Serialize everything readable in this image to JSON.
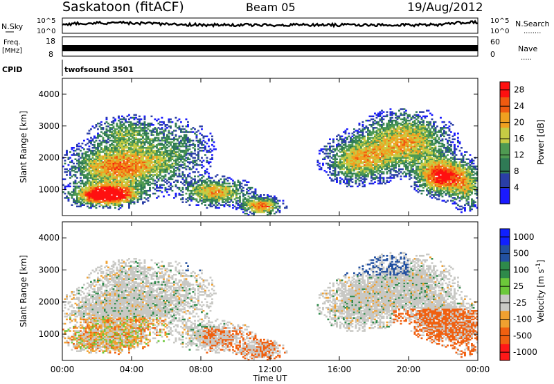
{
  "header": {
    "station": "Saskatoon (fitACF)",
    "beam": "Beam 05",
    "date": "19/Aug/2012"
  },
  "left_labels": {
    "nsky": "N.Sky",
    "freq_line1": "Freq.",
    "freq_line2": "[MHz]",
    "cpid": "CPID"
  },
  "right_labels": {
    "nsearch": "N.Search",
    "nsearch_dots": "........",
    "nave": "Nave",
    "nave_dots": "....."
  },
  "noise_panel": {
    "left_ticks": [
      "10^5",
      "10^0"
    ],
    "right_ticks": [
      "10^5",
      "10^0"
    ]
  },
  "freq_panel": {
    "left_ticks": [
      "18",
      "8"
    ],
    "right_ticks": [
      "60",
      "0"
    ]
  },
  "cpid_text": "twofsound 3501",
  "colors": {
    "power_scale": [
      "#1a1aff",
      "#2a3ea6",
      "#2f7a55",
      "#4f9a52",
      "#c6cc44",
      "#f0a020",
      "#f05a10",
      "#ff1010"
    ],
    "velocity_scale": [
      "#1020ff",
      "#2250a0",
      "#2e8a4a",
      "#6cc83a",
      "#c8c8c4",
      "#f0a030",
      "#f06010",
      "#ff1818"
    ]
  },
  "chart_data": [
    {
      "type": "heatmap",
      "ylabel": "Slant Range [km]",
      "xlabel": "",
      "yticks": [
        "1000",
        "2000",
        "3000",
        "4000"
      ],
      "ylim": [
        180,
        4500
      ],
      "xlim": [
        0,
        24
      ],
      "colorbar_label": "Power [dB]",
      "colorbar_ticks": [
        "4",
        "8",
        "12",
        "16",
        "20",
        "24",
        "28"
      ],
      "colorbar_range": [
        0,
        30
      ]
    },
    {
      "type": "heatmap",
      "ylabel": "Slant Range [km]",
      "xlabel": "Time UT",
      "yticks": [
        "1000",
        "2000",
        "3000",
        "4000"
      ],
      "xticks": [
        "00:00",
        "04:00",
        "08:00",
        "12:00",
        "16:00",
        "20:00",
        "00:00"
      ],
      "ylim": [
        180,
        4500
      ],
      "xlim": [
        0,
        24
      ],
      "colorbar_label": "Velocity [m s^-1]",
      "colorbar_ticks": [
        "1000",
        "500",
        "100",
        "25",
        "-25",
        "-100",
        "-500",
        "-1000"
      ]
    }
  ]
}
